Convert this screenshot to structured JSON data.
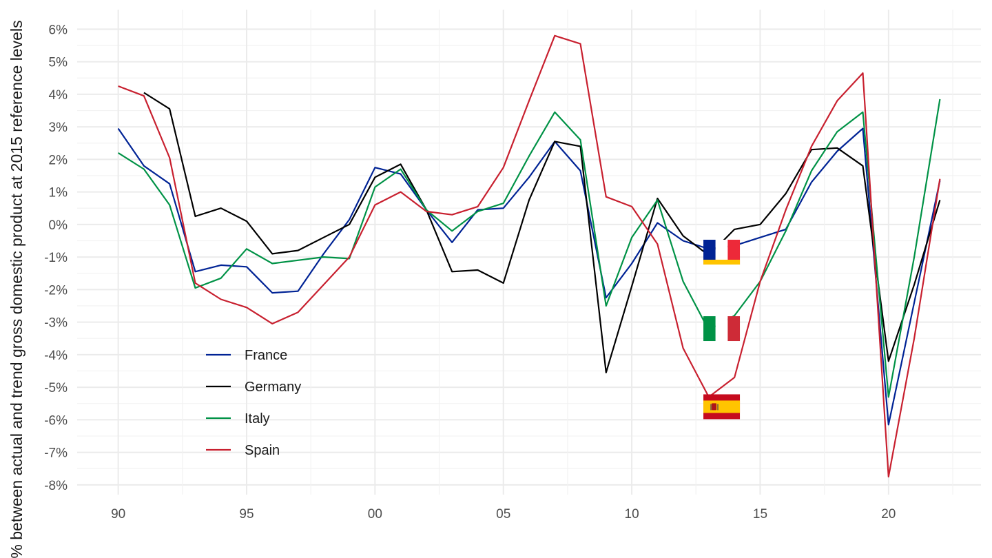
{
  "chart_data": {
    "type": "line",
    "title": "",
    "xlabel": "",
    "ylabel": "% between actual and trend gross domestic product at 2015 reference levels",
    "x": [
      1990,
      1991,
      1992,
      1993,
      1994,
      1995,
      1996,
      1997,
      1998,
      1999,
      2000,
      2001,
      2002,
      2003,
      2004,
      2005,
      2006,
      2007,
      2008,
      2009,
      2010,
      2011,
      2012,
      2013,
      2014,
      2015,
      2016,
      2017,
      2018,
      2019,
      2020,
      2021,
      2022
    ],
    "xlim": [
      1988.4,
      2023.6
    ],
    "ylim": [
      -8.3,
      6.6
    ],
    "xticks": [
      1990,
      1995,
      2000,
      2005,
      2010,
      2015,
      2020
    ],
    "xtick_labels": [
      "90",
      "95",
      "00",
      "05",
      "10",
      "15",
      "20"
    ],
    "yticks": [
      -8,
      -7,
      -6,
      -5,
      -4,
      -3,
      -2,
      -1,
      0,
      1,
      2,
      3,
      4,
      5,
      6
    ],
    "ytick_labels": [
      "-8%",
      "-7%",
      "-6%",
      "-5%",
      "-4%",
      "-3%",
      "-2%",
      "-1%",
      "0%",
      "1%",
      "2%",
      "3%",
      "4%",
      "5%",
      "6%"
    ],
    "grid": true,
    "legend_position": "bottom-left",
    "series": [
      {
        "name": "France",
        "color": "#002395",
        "values": [
          2.95,
          1.8,
          1.25,
          -1.45,
          -1.25,
          -1.3,
          -2.1,
          -2.05,
          -0.9,
          0.15,
          1.75,
          1.55,
          0.45,
          -0.55,
          0.45,
          0.5,
          1.45,
          2.55,
          1.65,
          -2.25,
          -1.2,
          0.05,
          -0.5,
          -0.75,
          -0.65,
          -0.4,
          -0.15,
          1.3,
          2.25,
          2.95,
          -6.15,
          -2.4,
          1.35
        ]
      },
      {
        "name": "Germany",
        "color": "#000000",
        "values": [
          null,
          4.05,
          3.55,
          0.25,
          0.5,
          0.1,
          -0.9,
          -0.8,
          -0.4,
          0.0,
          1.45,
          1.85,
          0.45,
          -1.45,
          -1.4,
          -1.8,
          0.75,
          2.55,
          2.4,
          -4.55,
          -1.9,
          0.8,
          -0.35,
          -0.95,
          -0.15,
          0.0,
          0.95,
          2.3,
          2.35,
          1.8,
          -4.2,
          -1.85,
          0.75
        ]
      },
      {
        "name": "Italy",
        "color": "#009246",
        "values": [
          2.2,
          1.7,
          0.6,
          -1.95,
          -1.65,
          -0.75,
          -1.2,
          -1.1,
          -1.0,
          -1.05,
          1.15,
          1.7,
          0.45,
          -0.2,
          0.4,
          0.65,
          2.1,
          3.45,
          2.6,
          -2.5,
          -0.4,
          0.75,
          -1.75,
          -3.25,
          -2.8,
          -1.75,
          -0.2,
          1.65,
          2.85,
          3.45,
          -5.3,
          -1.0,
          3.85
        ]
      },
      {
        "name": "Spain",
        "color": "#C8202F",
        "values": [
          4.25,
          3.95,
          2.05,
          -1.8,
          -2.3,
          -2.55,
          -3.05,
          -2.7,
          -1.85,
          -1.0,
          0.6,
          1.0,
          0.4,
          0.3,
          0.55,
          1.75,
          3.8,
          5.8,
          5.55,
          0.85,
          0.55,
          -0.6,
          -3.8,
          -5.3,
          -4.7,
          -1.75,
          0.45,
          2.4,
          3.8,
          4.65,
          -7.75,
          -3.5,
          1.4
        ]
      }
    ],
    "annotations": [
      {
        "type": "flag",
        "series": "France",
        "x": 2013.5,
        "y": -0.85
      },
      {
        "type": "flag",
        "series": "Italy",
        "x": 2013.5,
        "y": -3.2
      },
      {
        "type": "flag",
        "series": "Spain",
        "x": 2013.5,
        "y": -5.6
      }
    ]
  }
}
